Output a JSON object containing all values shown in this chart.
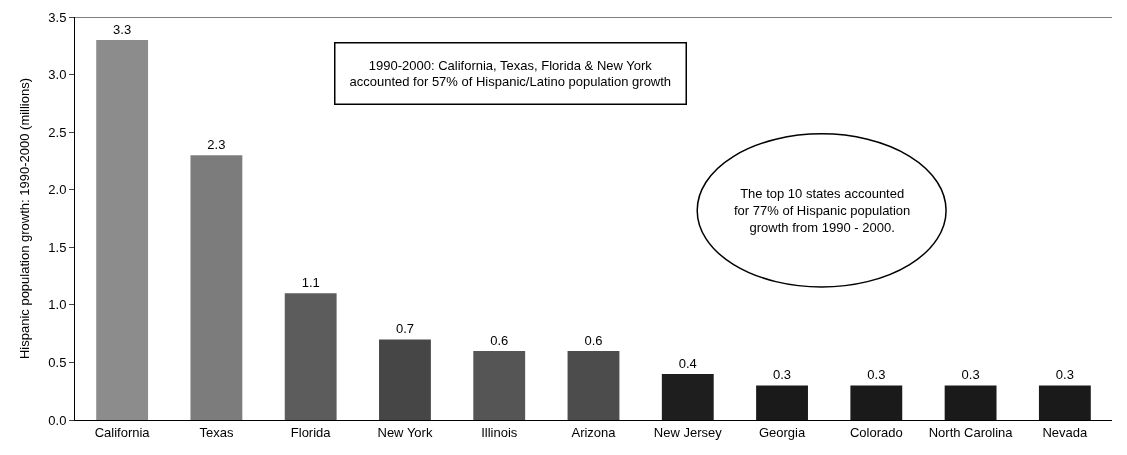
{
  "chart_data": {
    "type": "bar",
    "ylabel": "Hispanic population growth: 1990-2000 (millions)",
    "categories": [
      "California",
      "Texas",
      "Florida",
      "New York",
      "Illinois",
      "Arizona",
      "New Jersey",
      "Georgia",
      "Colorado",
      "North Carolina",
      "Nevada"
    ],
    "values": [
      3.3,
      2.3,
      1.1,
      0.7,
      0.6,
      0.6,
      0.4,
      0.3,
      0.3,
      0.3,
      0.3
    ],
    "colors": [
      "#8c8c8c",
      "#7c7c7c",
      "#5c5c5c",
      "#464646",
      "#555555",
      "#4c4c4c",
      "#1e1e1e",
      "#1a1a1a",
      "#1a1a1a",
      "#1a1a1a",
      "#1a1a1a"
    ],
    "data_labels": true,
    "ylim": [
      0,
      3.5
    ],
    "yticks": [
      {
        "value": 0,
        "label": "0.0"
      },
      {
        "value": 0.5,
        "label": "0.5"
      },
      {
        "value": 1,
        "label": "1.0"
      },
      {
        "value": 1.5,
        "label": "1.5"
      },
      {
        "value": 2,
        "label": "2.0"
      },
      {
        "value": 2.5,
        "label": "2.5"
      },
      {
        "value": 3,
        "label": "3.0"
      },
      {
        "value": 3.5,
        "label": "3.5"
      }
    ],
    "annotations": [
      "1990-2000: California, Texas, Florida & New York\naccounted for 57% of Hispanic/Latino population growth",
      "The top 10 states accounted\nfor 77% of Hispanic population\ngrowth from 1990 - 2000."
    ]
  }
}
